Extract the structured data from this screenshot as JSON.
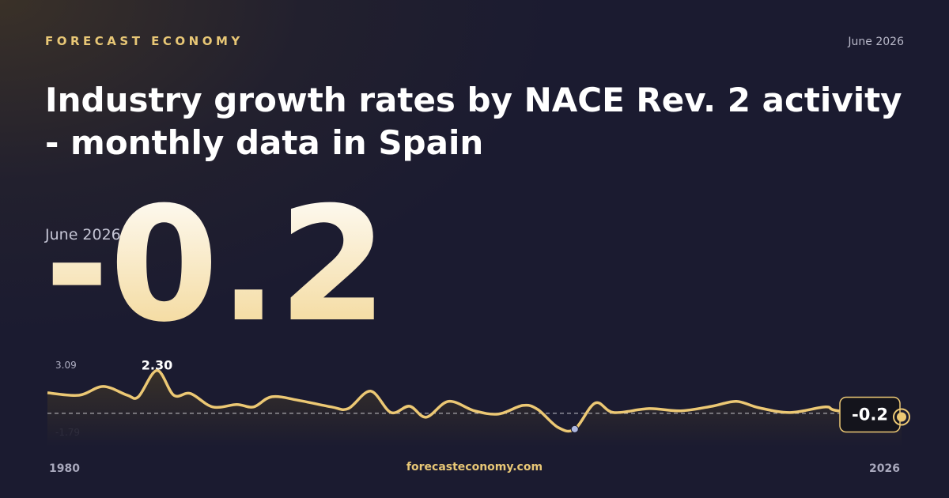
{
  "brand": "FORECAST ECONOMY",
  "date": "June 2026",
  "footer": "forecasteconomy.com",
  "chart_data": {
    "type": "line",
    "title": "Industry growth rates by NACE Rev. 2 activity - monthly data in Spain",
    "headline": {
      "date": "June 2026",
      "value": -0.2
    },
    "color": "#ecc874",
    "x": [
      1980.0,
      1981.7,
      1983.0,
      1984.3,
      1984.9,
      1985.9,
      1986.8,
      1987.7,
      1988.9,
      1990.2,
      1991.1,
      1992.1,
      1993.6,
      1995.3,
      1996.2,
      1997.4,
      1998.5,
      1999.5,
      2000.4,
      2001.6,
      2003.0,
      2004.3,
      2005.6,
      2006.4,
      2007.5,
      2008.4,
      2009.5,
      2010.5,
      2012.4,
      2014.1,
      2015.8,
      2017.1,
      2018.3,
      2020.0,
      2021.9,
      2022.6,
      2026.0
    ],
    "values": [
      1.1,
      0.97,
      1.44,
      0.97,
      0.89,
      2.3,
      0.97,
      1.06,
      0.34,
      0.47,
      0.34,
      0.89,
      0.68,
      0.34,
      0.25,
      1.19,
      0.04,
      0.38,
      -0.21,
      0.64,
      0.13,
      -0.04,
      0.42,
      0.21,
      -0.76,
      -0.85,
      0.55,
      0.04,
      0.25,
      0.13,
      0.38,
      0.64,
      0.3,
      0.04,
      0.34,
      0.13,
      -0.2
    ],
    "peak": {
      "value": 2.3,
      "label": "2.30"
    },
    "xlim": [
      1980,
      2026
    ],
    "xticks": [
      1980,
      2026
    ],
    "ylim": [
      -1.79,
      3.09
    ],
    "yticks": [
      3.09,
      -1.79
    ]
  }
}
